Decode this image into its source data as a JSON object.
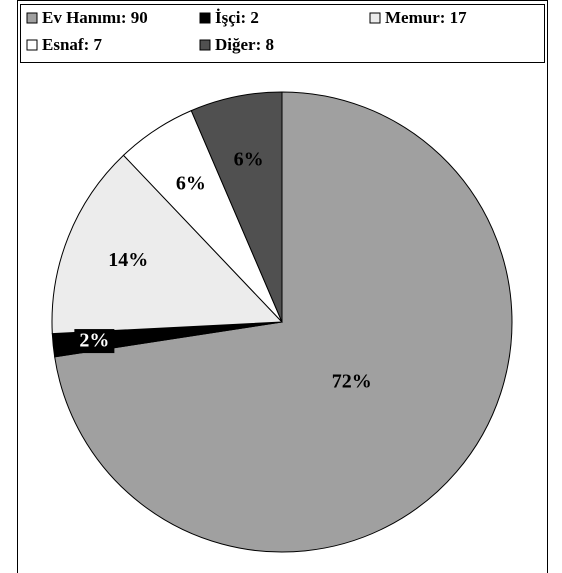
{
  "chart_data": {
    "type": "pie",
    "categories": [
      "Ev Hanımı",
      "İşçi",
      "Memur",
      "Esnaf",
      "Diğer"
    ],
    "legend_labels": [
      "Ev Hanımı: 90",
      "İşçi: 2",
      "Memur: 17",
      "Esnaf: 7",
      "Diğer: 8"
    ],
    "values": [
      90,
      2,
      17,
      7,
      8
    ],
    "value_labels": [
      "72%",
      "2%",
      "14%",
      "6%",
      "6%"
    ],
    "colors": [
      "#a0a0a0",
      "#000000",
      "#ececec",
      "#ffffff",
      "#505050"
    ],
    "legend": "top"
  }
}
